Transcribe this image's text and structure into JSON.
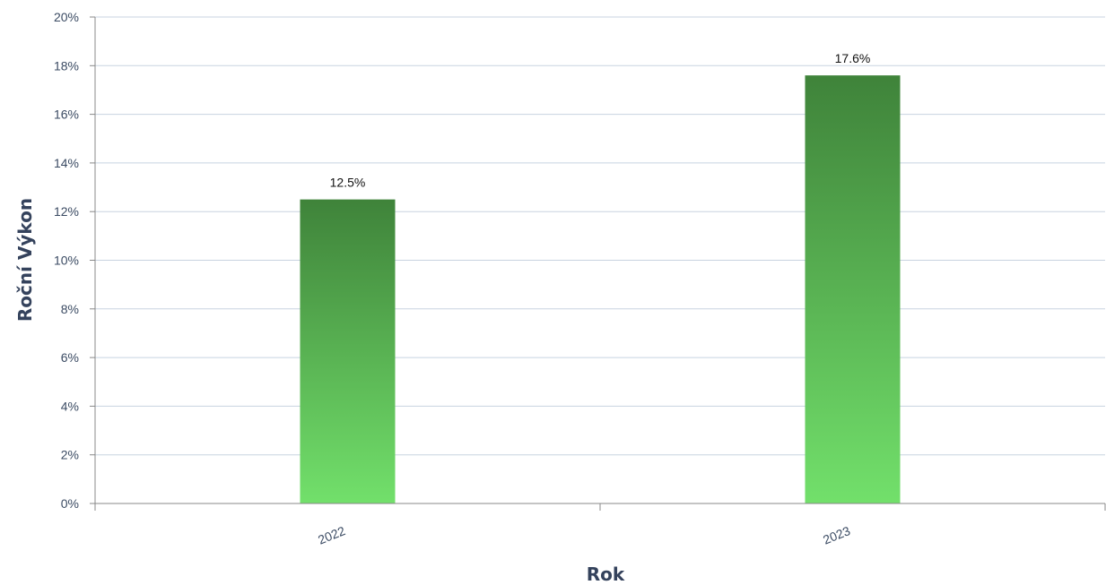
{
  "chart_data": {
    "type": "bar",
    "categories": [
      "2022",
      "2023"
    ],
    "values": [
      12.5,
      17.6
    ],
    "data_labels": [
      "12.5%",
      "17.6%"
    ],
    "title": "",
    "xlabel": "Rok",
    "ylabel": "Roční Výkon",
    "ylim": [
      0,
      20
    ],
    "y_ticks": [
      0,
      2,
      4,
      6,
      8,
      10,
      12,
      14,
      16,
      18,
      20
    ],
    "y_tick_labels": [
      "0%",
      "2%",
      "4%",
      "6%",
      "8%",
      "10%",
      "12%",
      "14%",
      "16%",
      "18%",
      "20%"
    ],
    "grid": true,
    "legend": "none",
    "colors": {
      "bar_top": "#3f833a",
      "bar_bottom": "#72e06b",
      "grid": "#c8d3e0",
      "axis": "#888888"
    }
  }
}
